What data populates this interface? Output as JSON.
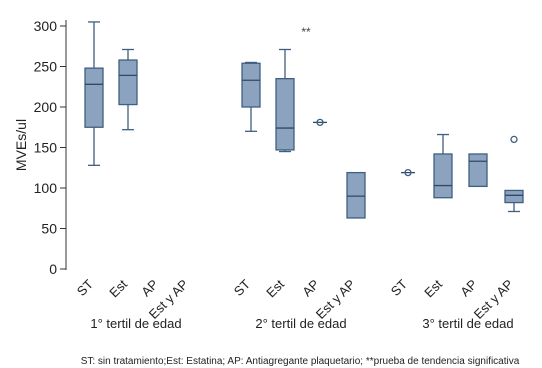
{
  "chart_data": {
    "type": "boxplot",
    "ylabel": "MVEs/ul",
    "ylim": [
      0,
      320
    ],
    "yticks": [
      0,
      50,
      100,
      150,
      200,
      250,
      300
    ],
    "colors": {
      "box_fill": "#8ca3bf",
      "box_stroke": "#3f5f80"
    },
    "groups": [
      {
        "label": "1° tertil de edad",
        "boxes": [
          {
            "category": "ST",
            "min": 128,
            "q1": 175,
            "median": 228,
            "q3": 248,
            "max": 305,
            "outliers": []
          },
          {
            "category": "Est",
            "min": 172,
            "q1": 203,
            "median": 239,
            "q3": 258,
            "max": 271,
            "outliers": []
          },
          {
            "category": "AP",
            "empty": true
          },
          {
            "category": "Est y AP",
            "empty": true
          }
        ]
      },
      {
        "label": "2° tertil de edad",
        "boxes": [
          {
            "category": "ST",
            "min": 170,
            "q1": 200,
            "median": 233,
            "q3": 254,
            "max": 255,
            "outliers": []
          },
          {
            "category": "Est",
            "min": 145,
            "q1": 147,
            "median": 174,
            "q3": 235,
            "max": 271,
            "outliers": []
          },
          {
            "category": "AP",
            "single": 181,
            "outliers": [
              181
            ]
          },
          {
            "category": "Est y AP",
            "min": 63,
            "q1": 63,
            "median": 90,
            "q3": 119,
            "max": 119,
            "outliers": []
          }
        ]
      },
      {
        "label": "3° tertil de edad",
        "boxes": [
          {
            "category": "ST",
            "single": 119,
            "outliers": [
              119
            ]
          },
          {
            "category": "Est",
            "min": 88,
            "q1": 88,
            "median": 103,
            "q3": 142,
            "max": 166,
            "outliers": []
          },
          {
            "category": "AP",
            "min": 102,
            "q1": 102,
            "median": 133,
            "q3": 142,
            "max": 142,
            "outliers": []
          },
          {
            "category": "Est y AP",
            "min": 71,
            "q1": 82,
            "median": 91,
            "q3": 97,
            "max": 97,
            "outliers": [
              160
            ]
          }
        ]
      }
    ],
    "annotations": [
      {
        "text": "**",
        "group": 1,
        "category": "Est"
      }
    ],
    "footnote": "ST: sin tratamiento;Est: Estatina; AP: Antiagregante plaquetario; **prueba de tendencia significativa"
  }
}
